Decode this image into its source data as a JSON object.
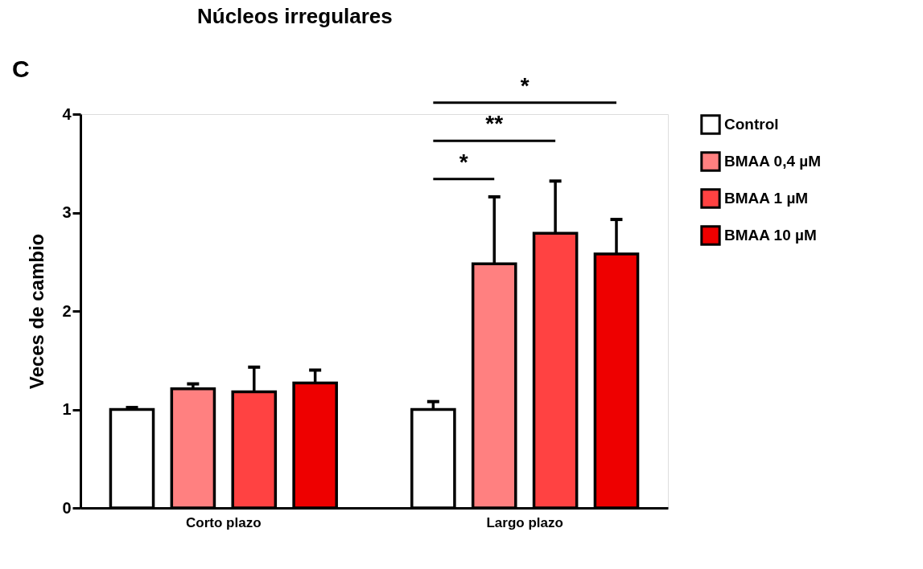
{
  "chart_data": {
    "type": "bar",
    "title": "Núcleos irregulares",
    "ylabel": "Veces de cambio",
    "categories": [
      "Corto plazo",
      "Largo plazo"
    ],
    "series": [
      {
        "name": "Control",
        "color": "#ffffff",
        "values": [
          1.0,
          1.0
        ],
        "errors": [
          [
            1.0,
            1.02
          ],
          [
            1.0,
            1.08
          ]
        ]
      },
      {
        "name": "BMAA 0,4 µM",
        "color": "#ff8080",
        "values": [
          1.21,
          2.48
        ],
        "errors": [
          [
            1.21,
            1.26
          ],
          [
            2.48,
            3.16
          ]
        ]
      },
      {
        "name": "BMAA 1 µM",
        "color": "#ff4242",
        "values": [
          1.18,
          2.79
        ],
        "errors": [
          [
            1.18,
            1.43
          ],
          [
            2.79,
            3.32
          ]
        ]
      },
      {
        "name": "BMAA 10 µM",
        "color": "#ee0000",
        "values": [
          1.27,
          2.58
        ],
        "errors": [
          [
            1.27,
            1.4
          ],
          [
            2.58,
            2.93
          ]
        ]
      }
    ],
    "ylim": [
      0,
      4
    ],
    "yticks": [
      0,
      1,
      2,
      3,
      4
    ],
    "grid": false,
    "legend": "top right",
    "annotations": [
      "C",
      "*",
      "**",
      "*"
    ]
  }
}
